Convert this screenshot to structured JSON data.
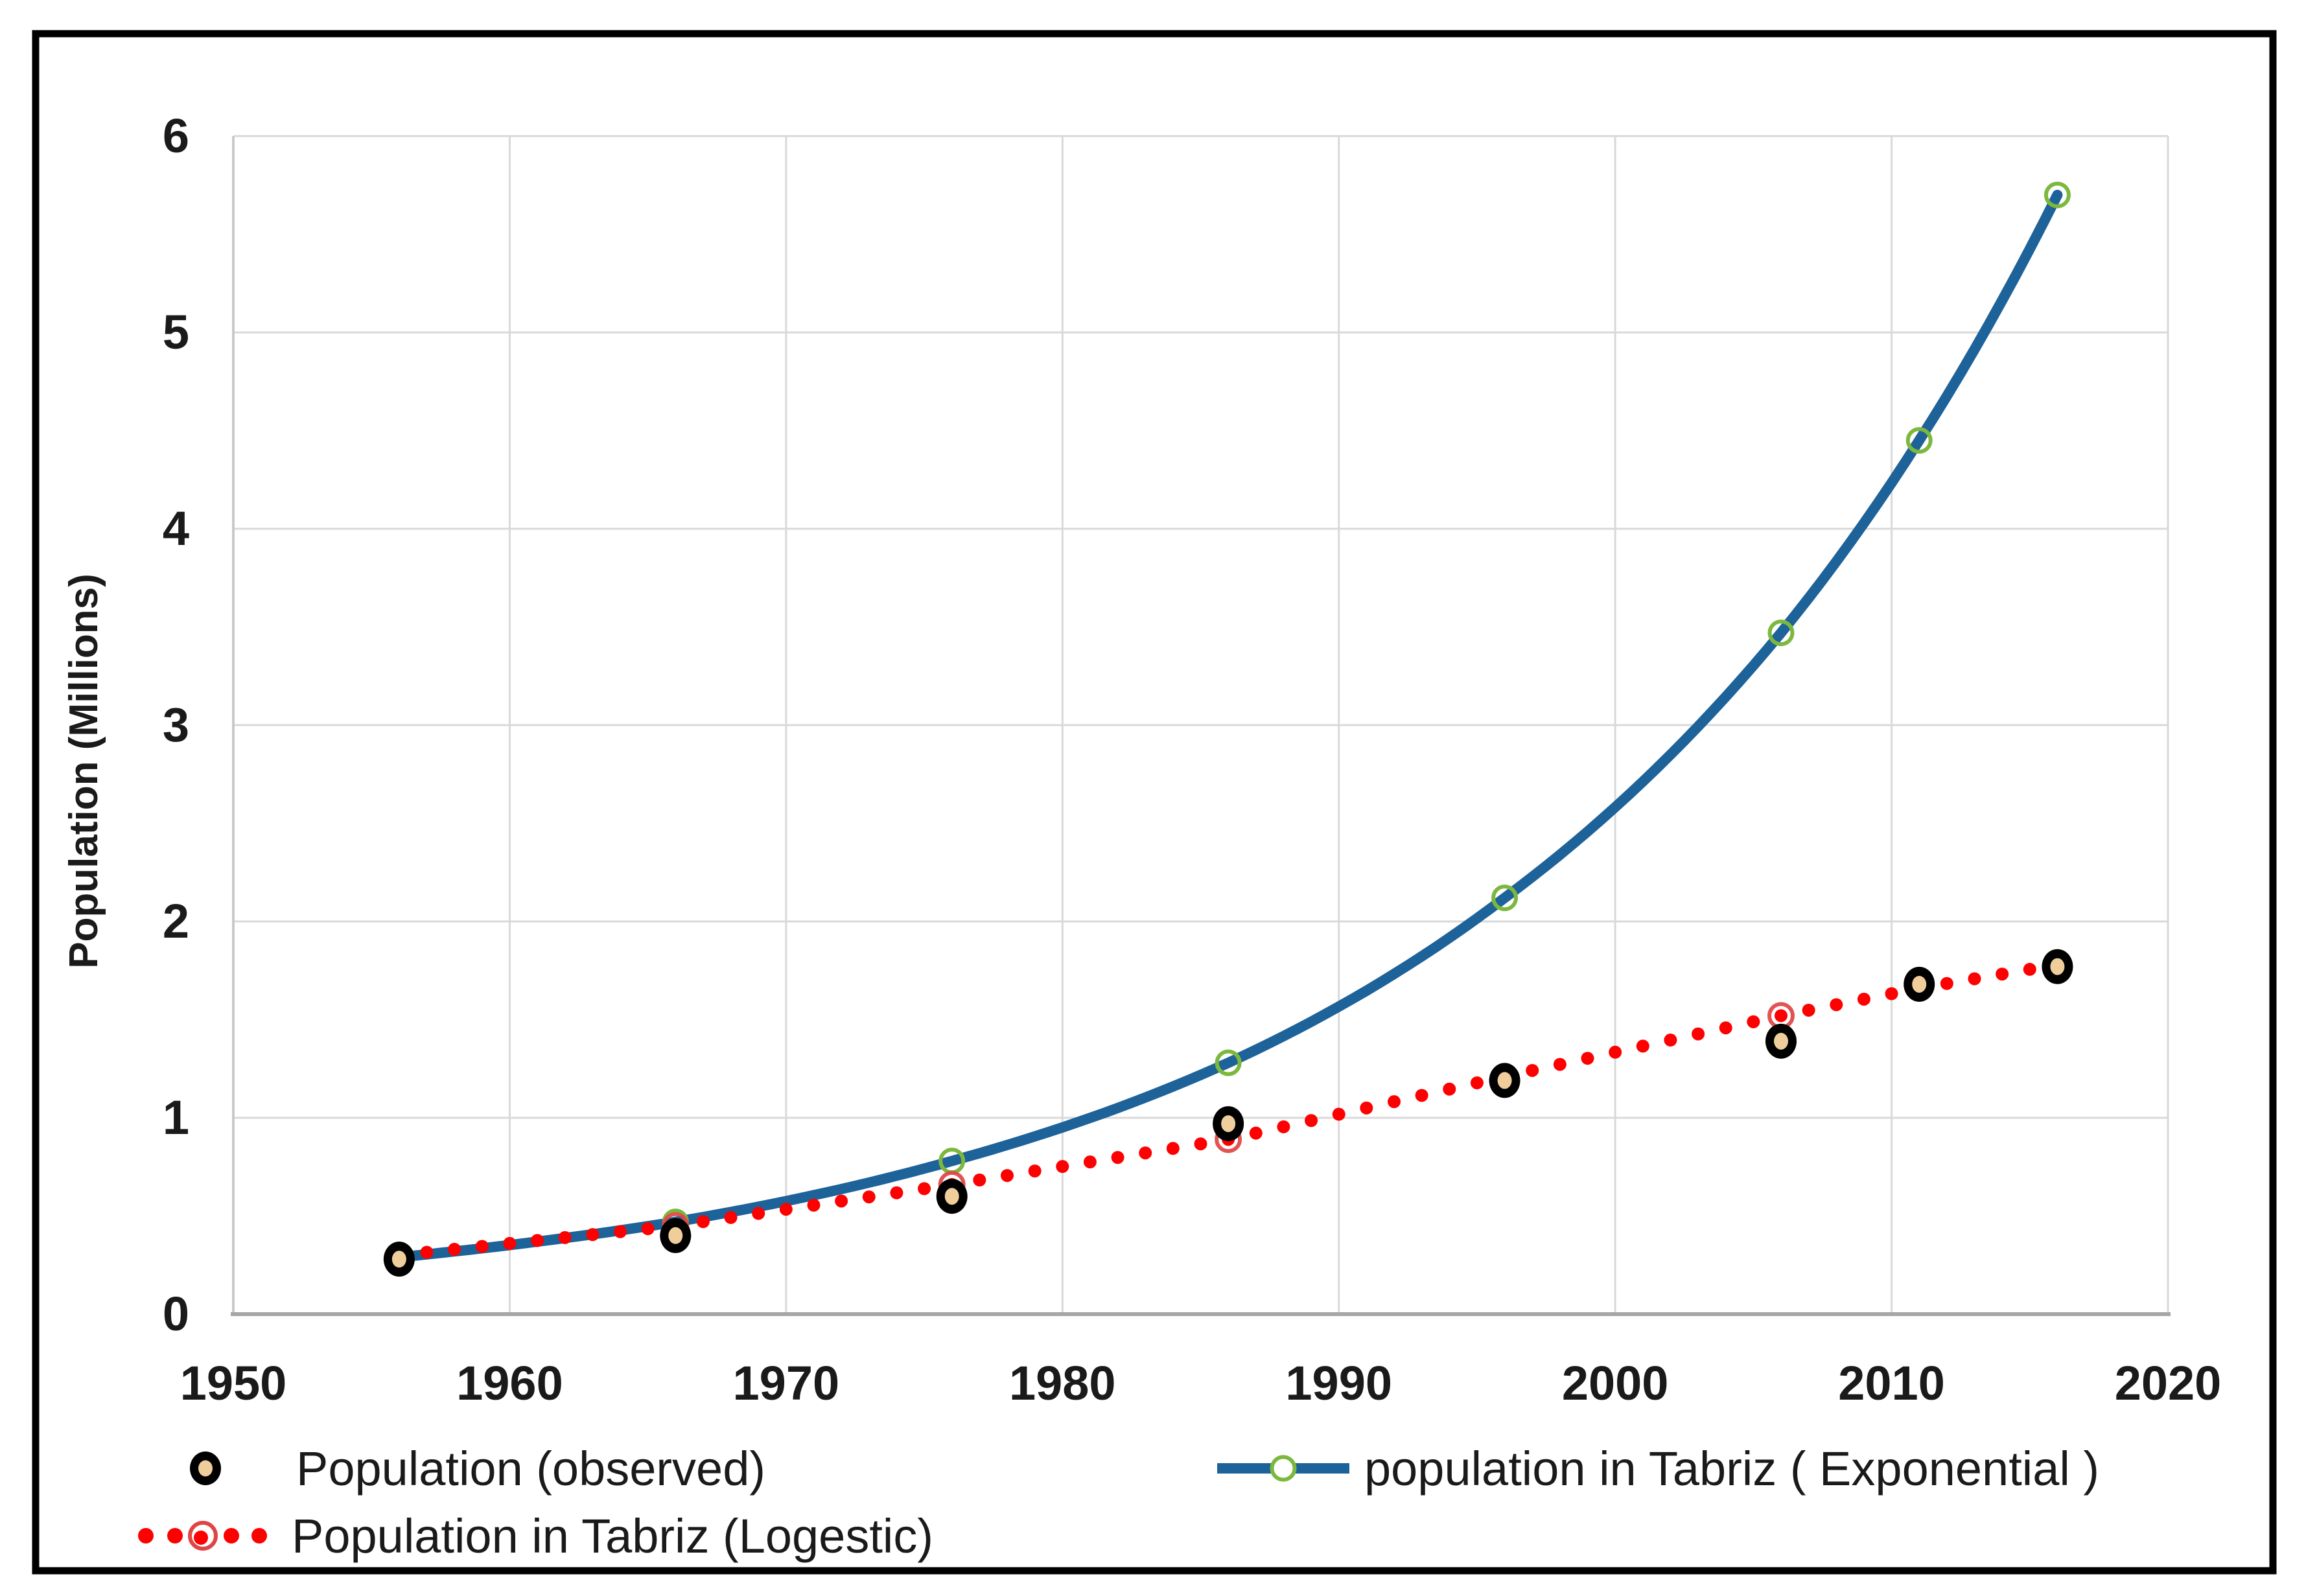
{
  "figure": {
    "background": "#ffffff",
    "border_color": "#000000",
    "grid_color": "#d9d9d9",
    "axis_line_color": "#a6a6a6",
    "axis_edge_color": "#c9c9c9"
  },
  "chart_data": {
    "type": "line",
    "title": "",
    "xlabel": "",
    "ylabel": "Population (Millions)",
    "xlim": [
      1950,
      2020
    ],
    "ylim": [
      0,
      6
    ],
    "xticks": [
      1950,
      1960,
      1970,
      1980,
      1990,
      2000,
      2010,
      2020
    ],
    "yticks": [
      0,
      1,
      2,
      3,
      4,
      5,
      6
    ],
    "grid": true,
    "legend_position": "bottom",
    "years": [
      1956,
      1966,
      1976,
      1986,
      1996,
      2006,
      2011,
      2016
    ],
    "series": [
      {
        "id": "observed",
        "name": "Population (observed)",
        "type": "scatter",
        "marker": "black-ring-tan-center",
        "line_color": "#000000",
        "marker_fill": "#F0CE9B",
        "values": [
          0.28,
          0.4,
          0.6,
          0.97,
          1.19,
          1.39,
          1.68,
          1.77
        ]
      },
      {
        "id": "exponential",
        "name": "population in Tabriz ( Exponential )",
        "type": "smooth-line",
        "marker": "open-circle",
        "line_color": "#1D6299",
        "marker_color": "#7CB83E",
        "values": [
          0.29,
          0.47,
          0.78,
          1.28,
          2.12,
          3.47,
          4.45,
          5.7
        ]
      },
      {
        "id": "logistic",
        "name": "Population in Tabriz (Logestic)",
        "type": "dotted-line",
        "marker": "open-circle",
        "line_color": "#FF0000",
        "marker_color": "#E04444",
        "values": [
          0.3,
          0.45,
          0.66,
          0.89,
          1.21,
          1.52,
          1.66,
          1.78
        ]
      }
    ]
  }
}
